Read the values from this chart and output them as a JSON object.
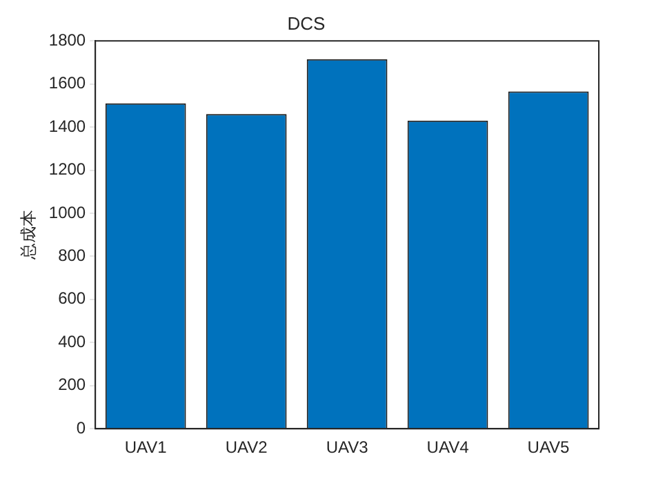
{
  "chart_data": {
    "type": "bar",
    "title": "DCS",
    "ylabel": "总成本",
    "categories": [
      "UAV1",
      "UAV2",
      "UAV3",
      "UAV4",
      "UAV5"
    ],
    "values": [
      1510,
      1460,
      1715,
      1430,
      1565
    ],
    "color": "#0072bd",
    "ylim": [
      0,
      1800
    ],
    "yticks": [
      0,
      200,
      400,
      600,
      800,
      1000,
      1200,
      1400,
      1600,
      1800
    ],
    "grid": false,
    "legend": false
  }
}
